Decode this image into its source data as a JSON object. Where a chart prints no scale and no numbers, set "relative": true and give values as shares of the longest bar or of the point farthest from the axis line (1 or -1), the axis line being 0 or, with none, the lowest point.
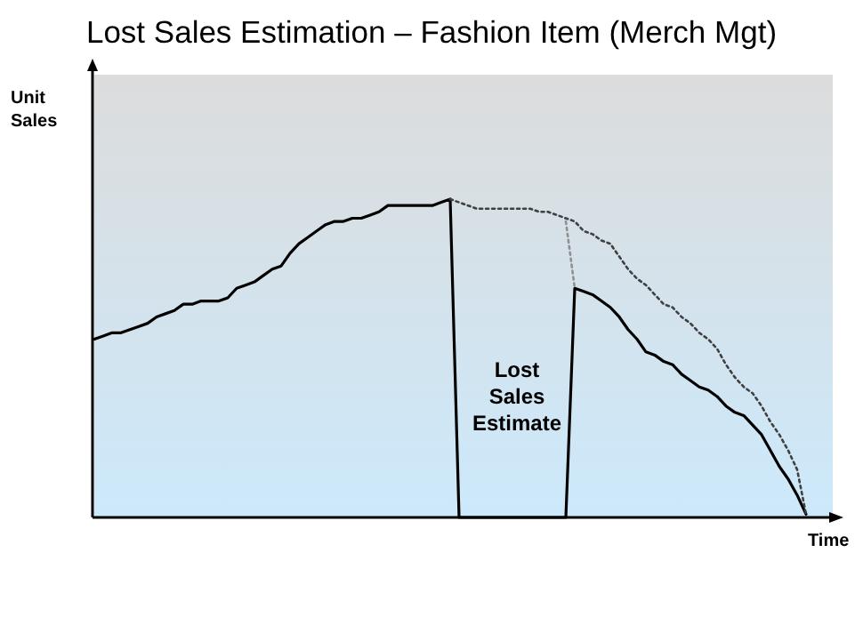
{
  "chart_data": {
    "type": "line",
    "title": "Lost Sales Estimation – Fashion Item (Merch Mgt)",
    "xlabel": "Time",
    "ylabel": "Unit Sales",
    "relative": true,
    "annotations": [
      "Lost Sales Estimate"
    ],
    "categories": [
      null,
      null,
      null,
      null,
      null,
      null,
      null,
      null,
      null,
      null,
      null,
      null,
      null,
      null,
      null,
      null,
      null,
      null,
      null,
      null,
      null,
      null,
      null,
      null,
      null,
      null,
      null,
      null,
      null,
      null,
      null,
      null,
      null,
      null,
      null,
      null,
      null,
      null,
      null,
      null,
      null,
      null,
      null,
      null,
      null,
      null,
      null,
      null,
      null,
      null,
      null,
      null,
      null,
      null,
      null,
      null,
      null,
      null,
      null,
      null,
      null,
      null,
      null,
      null,
      null,
      null,
      null,
      null,
      null,
      null,
      null,
      null,
      null,
      null,
      null,
      null,
      null,
      null,
      null,
      null,
      null
    ],
    "series": [
      {
        "color": "#000000",
        "line_style": "solid",
        "values": [
          0.56,
          0.57,
          0.58,
          0.58,
          0.59,
          0.6,
          0.61,
          0.63,
          0.64,
          0.65,
          0.67,
          0.67,
          0.68,
          0.68,
          0.68,
          0.69,
          0.72,
          0.73,
          0.74,
          0.76,
          0.78,
          0.79,
          0.83,
          0.86,
          0.88,
          0.9,
          0.92,
          0.93,
          0.93,
          0.94,
          0.94,
          0.95,
          0.96,
          0.98,
          0.98,
          0.98,
          0.98,
          0.98,
          0.98,
          0.99,
          1,
          0,
          0,
          0,
          0,
          0,
          0,
          0,
          0,
          0,
          0,
          0,
          0,
          0,
          0.72,
          0.71,
          0.7,
          0.68,
          0.66,
          0.63,
          0.59,
          0.56,
          0.52,
          0.51,
          0.49,
          0.48,
          0.45,
          0.43,
          0.41,
          0.4,
          0.38,
          0.35,
          0.33,
          0.32,
          0.29,
          0.26,
          0.21,
          0.16,
          0.12,
          0.07,
          0.01
        ]
      },
      {
        "color": "#404040",
        "line_style": "dotted",
        "values": [
          null,
          null,
          null,
          null,
          null,
          null,
          null,
          null,
          null,
          null,
          null,
          null,
          null,
          null,
          null,
          null,
          null,
          null,
          null,
          null,
          null,
          null,
          null,
          null,
          null,
          null,
          null,
          null,
          null,
          null,
          null,
          null,
          null,
          null,
          null,
          null,
          null,
          null,
          null,
          null,
          1,
          0.99,
          0.98,
          0.97,
          0.97,
          0.97,
          0.97,
          0.97,
          0.97,
          0.97,
          0.96,
          0.96,
          0.95,
          0.94,
          0.93,
          0.9,
          0.89,
          0.87,
          0.86,
          0.82,
          0.78,
          0.75,
          0.73,
          0.7,
          0.67,
          0.66,
          0.63,
          0.61,
          0.58,
          0.56,
          0.53,
          0.48,
          0.44,
          0.41,
          0.39,
          0.35,
          0.3,
          0.26,
          0.21,
          0.15,
          0.01
        ]
      },
      {
        "color": "#909090",
        "line_style": "dotted",
        "values": [
          null,
          null,
          null,
          null,
          null,
          null,
          null,
          null,
          null,
          null,
          null,
          null,
          null,
          null,
          null,
          null,
          null,
          null,
          null,
          null,
          null,
          null,
          null,
          null,
          null,
          null,
          null,
          null,
          null,
          null,
          null,
          null,
          null,
          null,
          null,
          null,
          null,
          null,
          null,
          null,
          null,
          null,
          null,
          null,
          null,
          null,
          null,
          null,
          null,
          null,
          null,
          null,
          null,
          0.93,
          0.72,
          null,
          null,
          null,
          null,
          null,
          null,
          null,
          null,
          null,
          null,
          null,
          null,
          null,
          null,
          null,
          null,
          null,
          null,
          null,
          null,
          null,
          null,
          null,
          null,
          null,
          null
        ]
      }
    ]
  }
}
